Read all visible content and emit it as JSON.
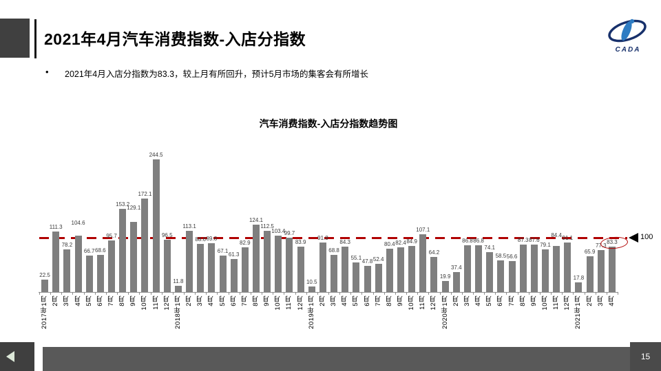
{
  "page": {
    "title": "2021年4月汽车消费指数-入店分指数",
    "bullet_marker": "•",
    "bullet": "2021年4月入店分指数为83.3，较上月有所回升，预计5月市场的集客会有所增长",
    "page_number": "15",
    "logo_text": "CADA"
  },
  "chart_data": {
    "type": "bar",
    "title": "汽车消费指数-入店分指数趋势图",
    "categories": [
      "2017年1月",
      "2月",
      "3月",
      "4月",
      "5月",
      "6月",
      "7月",
      "8月",
      "9月",
      "10月",
      "11月",
      "12月",
      "2018年1月",
      "2月",
      "3月",
      "4月",
      "5月",
      "6月",
      "7月",
      "8月",
      "9月",
      "10月",
      "11月",
      "12月",
      "2019年1月",
      "2月",
      "3月",
      "4月",
      "5月",
      "6月",
      "7月",
      "8月",
      "9月",
      "10月",
      "11月",
      "12月",
      "2020年1月",
      "2月",
      "3月",
      "4月",
      "5月",
      "6月",
      "7月",
      "8月",
      "9月",
      "10月",
      "11月",
      "12月",
      "2021年1月",
      "2月",
      "3月",
      "4月"
    ],
    "values": [
      22.5,
      111.3,
      78.2,
      104.6,
      66.7,
      68.6,
      95.7,
      153.2,
      129.1,
      172.1,
      244.5,
      96.5,
      11.8,
      113.1,
      88.6,
      89.8,
      67.1,
      61.3,
      82.9,
      124.1,
      112.5,
      103.4,
      99.7,
      83.9,
      10.5,
      91.8,
      68.8,
      84.3,
      55.1,
      47.8,
      52.4,
      80.4,
      82.4,
      84.9,
      107.1,
      64.2,
      19.9,
      37.4,
      86.8,
      86.8,
      74.1,
      58.5,
      56.6,
      87.3,
      87.6,
      79.1,
      84.4,
      91.1,
      17.8,
      65.9,
      77.3,
      83.3
    ],
    "xlabel": "",
    "ylabel": "",
    "ylim": [
      0,
      260
    ],
    "grid": false,
    "legend": "none",
    "bar_color": "#7f7f7f",
    "reference_line": {
      "value": 100,
      "label": "100",
      "color": "#b00000"
    },
    "highlight_last": true,
    "label_offsets": {
      "3": -12,
      "8": -14,
      "46": -9
    }
  },
  "colors": {
    "header_square": "#404040",
    "footer_bar": "#595959",
    "nav_square": "#3f3f3f",
    "logo_blue": "#17306b",
    "logo_light_blue": "#2e7cc3"
  }
}
